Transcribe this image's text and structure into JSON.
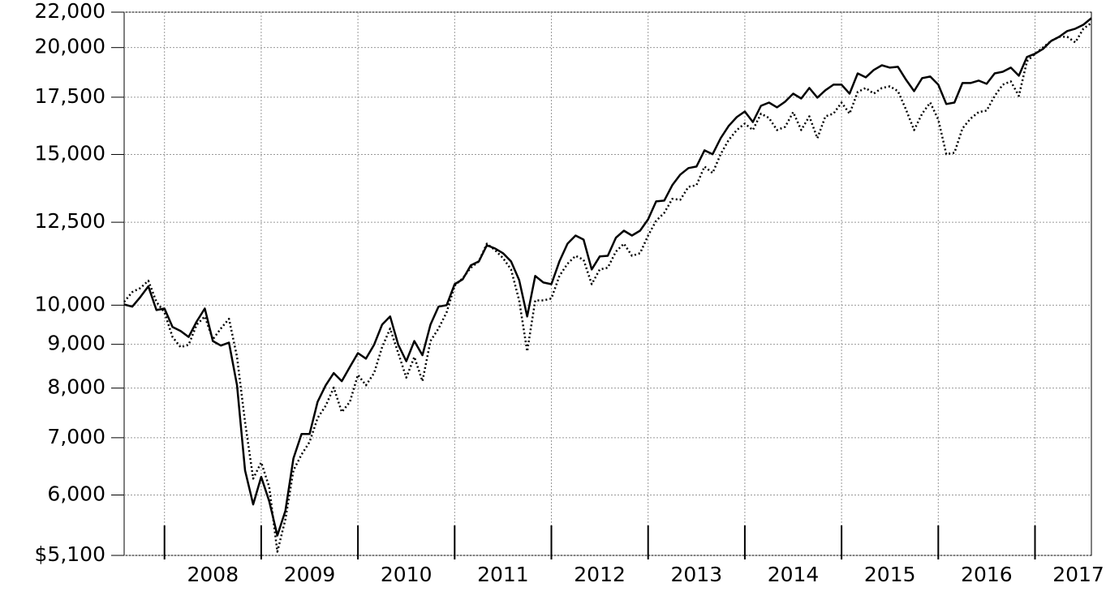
{
  "chart_data": {
    "type": "line",
    "ylog": true,
    "grid": true,
    "xlim": [
      2007.583,
      2017.583
    ],
    "xticks": [
      2008,
      2009,
      2010,
      2011,
      2012,
      2013,
      2014,
      2015,
      2016,
      2017
    ],
    "ylim": [
      5100,
      22000
    ],
    "yticks": [
      {
        "value": 5100,
        "label": "$5,100"
      },
      {
        "value": 6000,
        "label": "6,000"
      },
      {
        "value": 7000,
        "label": "7,000"
      },
      {
        "value": 8000,
        "label": "8,000"
      },
      {
        "value": 9000,
        "label": "9,000"
      },
      {
        "value": 10000,
        "label": "10,000"
      },
      {
        "value": 12500,
        "label": "12,500"
      },
      {
        "value": 15000,
        "label": "15,000"
      },
      {
        "value": 17500,
        "label": "17,500"
      },
      {
        "value": 20000,
        "label": "20,000"
      },
      {
        "value": 22000,
        "label": "22,000"
      }
    ],
    "x": [
      2007.583,
      2007.667,
      2007.75,
      2007.833,
      2007.917,
      2008,
      2008.083,
      2008.167,
      2008.25,
      2008.333,
      2008.417,
      2008.5,
      2008.583,
      2008.667,
      2008.75,
      2008.833,
      2008.917,
      2009,
      2009.083,
      2009.167,
      2009.25,
      2009.333,
      2009.417,
      2009.5,
      2009.583,
      2009.667,
      2009.75,
      2009.833,
      2009.917,
      2010,
      2010.083,
      2010.167,
      2010.25,
      2010.333,
      2010.417,
      2010.5,
      2010.583,
      2010.667,
      2010.75,
      2010.833,
      2010.917,
      2011,
      2011.083,
      2011.167,
      2011.25,
      2011.333,
      2011.417,
      2011.5,
      2011.583,
      2011.667,
      2011.75,
      2011.833,
      2011.917,
      2012,
      2012.083,
      2012.167,
      2012.25,
      2012.333,
      2012.417,
      2012.5,
      2012.583,
      2012.667,
      2012.75,
      2012.833,
      2012.917,
      2013,
      2013.083,
      2013.167,
      2013.25,
      2013.333,
      2013.417,
      2013.5,
      2013.583,
      2013.667,
      2013.75,
      2013.833,
      2013.917,
      2014,
      2014.083,
      2014.167,
      2014.25,
      2014.333,
      2014.417,
      2014.5,
      2014.583,
      2014.667,
      2014.75,
      2014.833,
      2014.917,
      2015,
      2015.083,
      2015.167,
      2015.25,
      2015.333,
      2015.417,
      2015.5,
      2015.583,
      2015.667,
      2015.75,
      2015.833,
      2015.917,
      2016,
      2016.083,
      2016.167,
      2016.25,
      2016.333,
      2016.417,
      2016.5,
      2016.583,
      2016.667,
      2016.75,
      2016.833,
      2016.917,
      2017,
      2017.083,
      2017.167,
      2017.25,
      2017.333,
      2017.417,
      2017.5,
      2017.583
    ],
    "series": [
      {
        "color": "#000000",
        "line_style": "solid",
        "values": [
          10020,
          9960,
          10220,
          10520,
          9870,
          9910,
          9430,
          9330,
          9180,
          9570,
          9910,
          9080,
          8970,
          9040,
          8060,
          6410,
          5850,
          6300,
          5900,
          5380,
          5750,
          6620,
          7070,
          7070,
          7710,
          8060,
          8330,
          8150,
          8470,
          8790,
          8660,
          8990,
          9490,
          9700,
          8990,
          8600,
          9080,
          8740,
          9490,
          9960,
          10000,
          10580,
          10720,
          11130,
          11250,
          11750,
          11650,
          11500,
          11250,
          10700,
          9700,
          10820,
          10630,
          10580,
          11250,
          11800,
          12060,
          11930,
          11010,
          11400,
          11420,
          11990,
          12220,
          12060,
          12220,
          12600,
          13220,
          13250,
          13810,
          14210,
          14460,
          14520,
          15170,
          15010,
          15670,
          16200,
          16590,
          16840,
          16370,
          17100,
          17250,
          17030,
          17290,
          17670,
          17440,
          17940,
          17480,
          17830,
          18100,
          18100,
          17670,
          18660,
          18460,
          18830,
          19070,
          18950,
          18990,
          18340,
          17790,
          18420,
          18500,
          18100,
          17180,
          17250,
          18180,
          18180,
          18300,
          18140,
          18660,
          18740,
          18950,
          18540,
          19500,
          19670,
          19930,
          20360,
          20590,
          20910,
          21040,
          21270,
          21650
        ]
      },
      {
        "color": "#000000",
        "line_style": "dotted",
        "values": [
          10090,
          10360,
          10470,
          10680,
          10090,
          9810,
          9180,
          8930,
          8990,
          9490,
          9700,
          9120,
          9390,
          9640,
          8700,
          7300,
          6270,
          6550,
          6130,
          5150,
          5620,
          6410,
          6690,
          6920,
          7380,
          7630,
          8010,
          7500,
          7710,
          8290,
          8060,
          8330,
          8930,
          9390,
          8790,
          8230,
          8700,
          8150,
          9080,
          9390,
          9810,
          10540,
          10750,
          11060,
          11250,
          11800,
          11600,
          11350,
          11010,
          10130,
          8830,
          10130,
          10130,
          10180,
          10820,
          11180,
          11420,
          11300,
          10580,
          11010,
          11060,
          11550,
          11800,
          11420,
          11500,
          12060,
          12550,
          12820,
          13310,
          13280,
          13750,
          13810,
          14520,
          14270,
          15010,
          15600,
          16020,
          16300,
          16020,
          16740,
          16550,
          16020,
          16160,
          16810,
          16020,
          16620,
          15670,
          16620,
          16740,
          17250,
          16740,
          17750,
          17940,
          17670,
          17940,
          18020,
          17790,
          16920,
          16020,
          16740,
          17250,
          16480,
          15010,
          15070,
          16090,
          16520,
          16810,
          16880,
          17560,
          18100,
          18260,
          17560,
          19280,
          19670,
          20010,
          20360,
          20590,
          20590,
          20280,
          21040,
          21370
        ]
      }
    ]
  }
}
